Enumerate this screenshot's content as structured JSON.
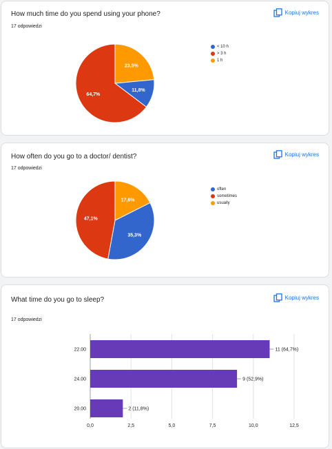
{
  "copy_label": "Kopiuj wykres",
  "cards": [
    {
      "title": "How much time do you spend using your phone?",
      "subtitle": "17 odpowiedzi"
    },
    {
      "title": "How often do you go to a doctor/ dentist?",
      "subtitle": "17 odpowiedzi"
    },
    {
      "title": "What time do you go to sleep?",
      "subtitle": "17 odpowiedzi"
    }
  ],
  "colors": {
    "blue": "#3366cc",
    "red": "#dc3912",
    "orange": "#ff9900",
    "purple": "#673ab7",
    "link": "#1a73e8"
  },
  "chart_data": [
    {
      "type": "pie",
      "title": "How much time do you spend using your phone?",
      "legend": [
        "< 10 h",
        "> 3 h",
        "1 h"
      ],
      "legend_position": "right",
      "slices": [
        {
          "label": "< 10 h",
          "value": 11.8,
          "display": "11,8%",
          "color": "#3366cc"
        },
        {
          "label": "> 3 h",
          "value": 64.7,
          "display": "64,7%",
          "color": "#dc3912"
        },
        {
          "label": "1 h",
          "value": 23.5,
          "display": "23,5%",
          "color": "#ff9900"
        }
      ]
    },
    {
      "type": "pie",
      "title": "How often do you go to a doctor/ dentist?",
      "legend": [
        "often",
        "sometimes",
        "usually"
      ],
      "legend_position": "right",
      "slices": [
        {
          "label": "often",
          "value": 35.3,
          "display": "35,3%",
          "color": "#3366cc"
        },
        {
          "label": "sometimes",
          "value": 47.1,
          "display": "47,1%",
          "color": "#dc3912"
        },
        {
          "label": "usually",
          "value": 17.6,
          "display": "17,6%",
          "color": "#ff9900"
        }
      ]
    },
    {
      "type": "bar",
      "orientation": "horizontal",
      "title": "What time do you go to sleep?",
      "categories": [
        "22.00",
        "24.00",
        "20.00"
      ],
      "values": [
        11,
        9,
        2
      ],
      "labels": [
        "11 (64,7%)",
        "9 (52,9%)",
        "2 (11,8%)"
      ],
      "xlim": [
        0,
        12.5
      ],
      "xticks": [
        "0,0",
        "2,5",
        "5,0",
        "7,5",
        "10,0",
        "12,5"
      ],
      "grid": true,
      "color": "#673ab7"
    }
  ]
}
